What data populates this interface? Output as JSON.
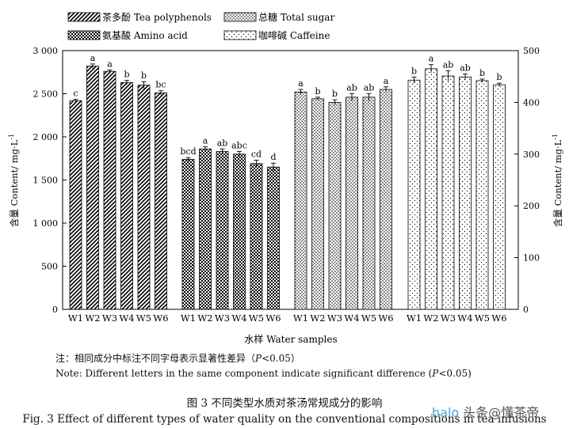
{
  "chart_data": {
    "type": "bar",
    "legend": [
      {
        "key": "tea",
        "zh": "茶多酚",
        "en": "Tea polyphenols"
      },
      {
        "key": "sugar",
        "zh": "总糖",
        "en": "Total sugar"
      },
      {
        "key": "amino",
        "zh": "氨基酸",
        "en": "Amino acid"
      },
      {
        "key": "caffeine",
        "zh": "咖啡碱",
        "en": "Caffeine"
      }
    ],
    "categories": [
      "W1",
      "W2",
      "W3",
      "W4",
      "W5",
      "W6"
    ],
    "xlabel": "水样   Water samples",
    "ylabel_left": "含量  Content/ mg·L",
    "ylabel_right": "含量  Content/ mg·L",
    "ylabel_sup": "-1",
    "ylim_left": [
      0,
      3000
    ],
    "ylim_right": [
      0,
      500
    ],
    "yticks_left": [
      "0",
      "500",
      "1 000",
      "1 500",
      "2 000",
      "2 500",
      "3 000"
    ],
    "yticks_right": [
      "0",
      "100",
      "200",
      "300",
      "400",
      "500"
    ],
    "series": [
      {
        "key": "tea",
        "axis": "left",
        "values": [
          2420,
          2820,
          2760,
          2630,
          2600,
          2510
        ],
        "errors": [
          15,
          25,
          15,
          25,
          40,
          25
        ],
        "letters": [
          "c",
          "a",
          "a",
          "b",
          "b",
          "bc"
        ]
      },
      {
        "key": "amino",
        "axis": "left",
        "values": [
          1740,
          1860,
          1830,
          1800,
          1690,
          1650
        ],
        "errors": [
          20,
          25,
          30,
          30,
          40,
          45
        ],
        "letters": [
          "bcd",
          "a",
          "ab",
          "abc",
          "cd",
          "d"
        ]
      },
      {
        "key": "sugar",
        "axis": "right",
        "values": [
          420,
          407,
          400,
          410,
          410,
          425
        ],
        "errors": [
          5,
          3,
          5,
          7,
          7,
          5
        ],
        "letters": [
          "a",
          "b",
          "b",
          "ab",
          "ab",
          "a"
        ]
      },
      {
        "key": "caffeine",
        "axis": "right",
        "values": [
          443,
          465,
          451,
          449,
          442,
          434
        ],
        "errors": [
          6,
          8,
          10,
          6,
          3,
          3
        ],
        "letters": [
          "b",
          "a",
          "ab",
          "ab",
          "b",
          "b"
        ]
      }
    ]
  },
  "notes": {
    "zh_prefix": "注：相同成分中标注不同字母表示显著性差异（",
    "zh_p": "P",
    "zh_suffix": "<0.05）",
    "en_prefix": "Note: Different letters in the same component indicate significant difference (",
    "en_p": "P",
    "en_suffix": "<0.05)"
  },
  "caption": {
    "zh": "图 3  不同类型水质对茶汤常规成分的影响",
    "en": "Fig. 3 Effect of different types of water quality on the conventional compositions in tea infusions"
  },
  "watermark": {
    "part1": "halo",
    "part2": "头条@懂茶帝"
  }
}
